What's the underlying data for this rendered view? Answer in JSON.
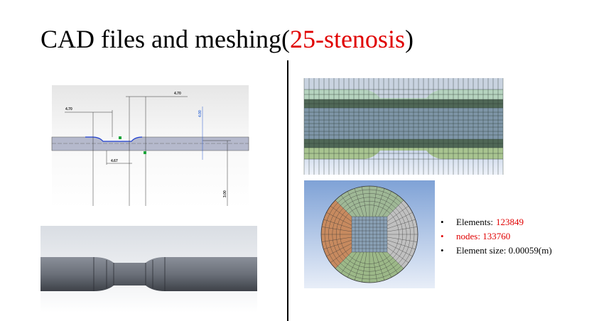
{
  "title": {
    "text": "CAD files and meshing(",
    "highlight": "25-stenosis",
    "close": ")"
  },
  "cad_dimensions": [
    "4.70",
    "4.70",
    "4.67",
    "3.00",
    "4.00"
  ],
  "bullets": [
    {
      "label": "Elements:",
      "value": "123849"
    },
    {
      "text": "nodes: 133760"
    },
    {
      "text": "Element size: 0.00059(m)"
    }
  ]
}
